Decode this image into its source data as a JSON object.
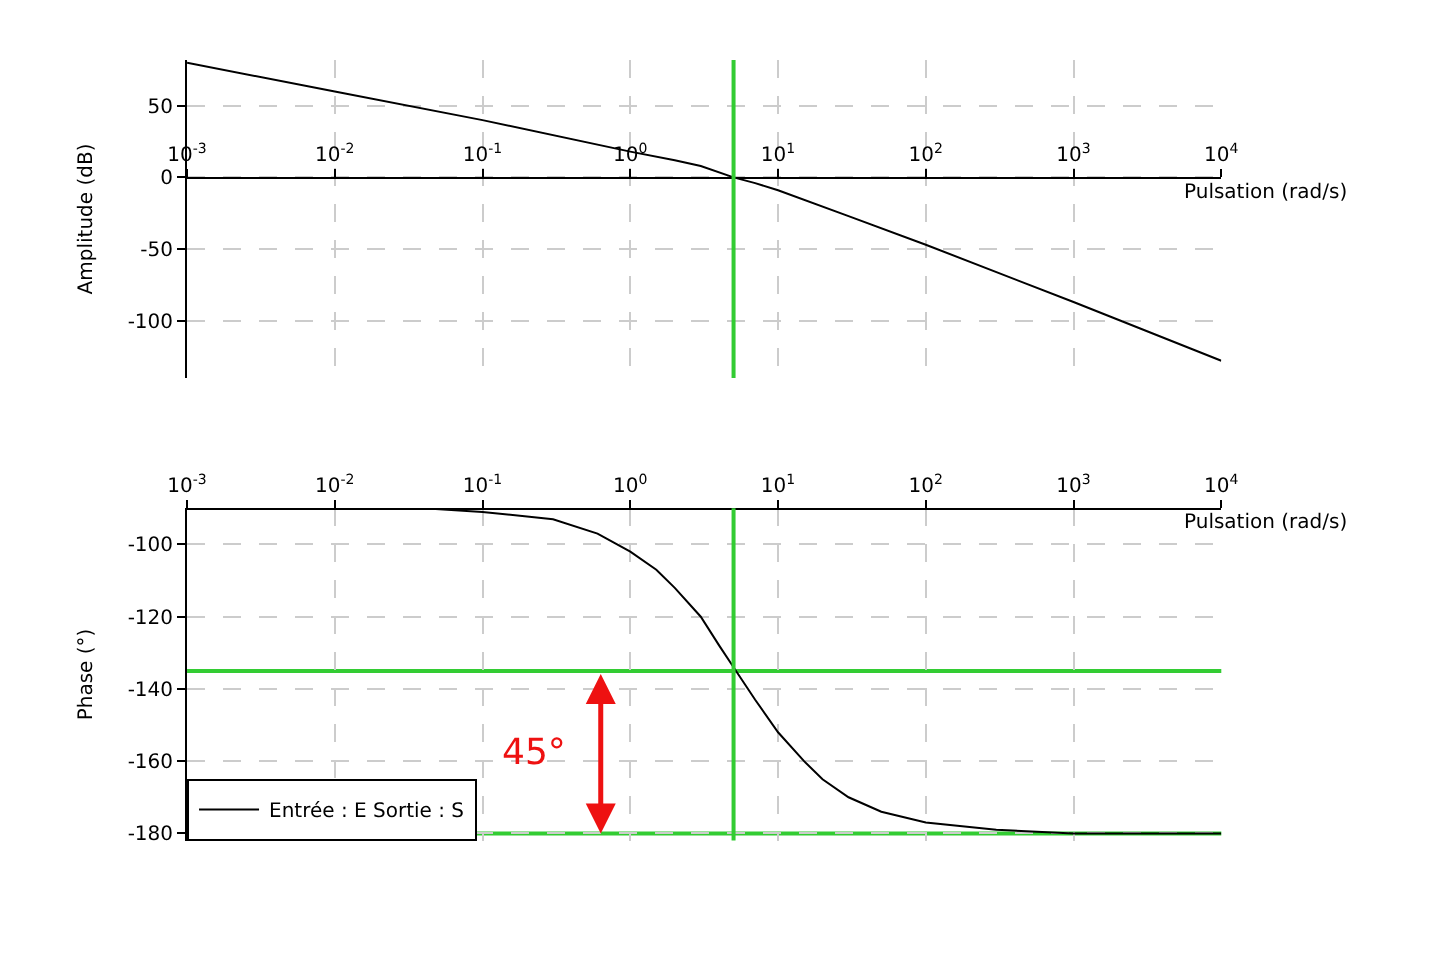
{
  "chart_data": [
    {
      "type": "line",
      "ylabel": "Amplitude (dB)",
      "xlabel": "Pulsation (rad/s)",
      "log": "x",
      "grid": true,
      "xlim": [
        0.001,
        10000
      ],
      "xticks": [
        {
          "value": 0.001,
          "label": "10$^{-3}$"
        },
        {
          "value": 0.01,
          "label": "10$^{-2}$"
        },
        {
          "value": 0.1,
          "label": "10$^{-1}$"
        },
        {
          "value": 1,
          "label": "10$^{0}$"
        },
        {
          "value": 10,
          "label": "10$^{1}$"
        },
        {
          "value": 100,
          "label": "10$^{2}$"
        },
        {
          "value": 1000,
          "label": "10$^{3}$"
        },
        {
          "value": 10000,
          "label": "10$^{4}$"
        }
      ],
      "ylim": [
        -140,
        82
      ],
      "yticks": [
        50,
        0,
        -50,
        -100
      ],
      "series": [
        {
          "color": "#000000",
          "x": [
            0.001,
            0.01,
            0.1,
            1,
            2,
            3,
            5,
            7,
            10,
            30,
            100,
            1000,
            10000
          ],
          "values": [
            80,
            60,
            40,
            18,
            12,
            8,
            0,
            -4,
            -9,
            -27,
            -47,
            -87,
            -128
          ]
        }
      ],
      "ref_lines": [
        {
          "axis": "x",
          "value": 5,
          "color": "#33cc33"
        }
      ]
    },
    {
      "type": "line",
      "ylabel": "Phase (°)",
      "xlabel": "Pulsation (rad/s)",
      "log": "x",
      "grid": true,
      "legend": "bottom left",
      "xlim": [
        0.001,
        10000
      ],
      "xticks": [
        {
          "value": 0.001,
          "label": "10$^{-3}$"
        },
        {
          "value": 0.01,
          "label": "10$^{-2}$"
        },
        {
          "value": 0.1,
          "label": "10$^{-1}$"
        },
        {
          "value": 1,
          "label": "10$^{0}$"
        },
        {
          "value": 10,
          "label": "10$^{1}$"
        },
        {
          "value": 100,
          "label": "10$^{2}$"
        },
        {
          "value": 1000,
          "label": "10$^{3}$"
        },
        {
          "value": 10000,
          "label": "10$^{4}$"
        }
      ],
      "ylim": [
        -182,
        -90
      ],
      "yticks": [
        -100,
        -120,
        -140,
        -160,
        -180
      ],
      "series": [
        {
          "name": "Entrée : E Sortie : S",
          "color": "#000000",
          "x": [
            0.04,
            0.1,
            0.3,
            0.6,
            1,
            1.5,
            2,
            3,
            4,
            5,
            7,
            10,
            15,
            20,
            30,
            50,
            100,
            300,
            1000,
            10000
          ],
          "values": [
            -90,
            -91,
            -93,
            -97,
            -102,
            -107,
            -112,
            -120,
            -128,
            -134,
            -143,
            -152,
            -160,
            -165,
            -170,
            -174,
            -177,
            -179,
            -180,
            -180
          ]
        }
      ],
      "ref_lines": [
        {
          "axis": "x",
          "value": 5,
          "color": "#33cc33"
        },
        {
          "axis": "y",
          "value": -135,
          "color": "#33cc33"
        },
        {
          "axis": "y",
          "value": -180,
          "color": "#33cc33"
        }
      ],
      "annotations": [
        "45°"
      ]
    }
  ]
}
